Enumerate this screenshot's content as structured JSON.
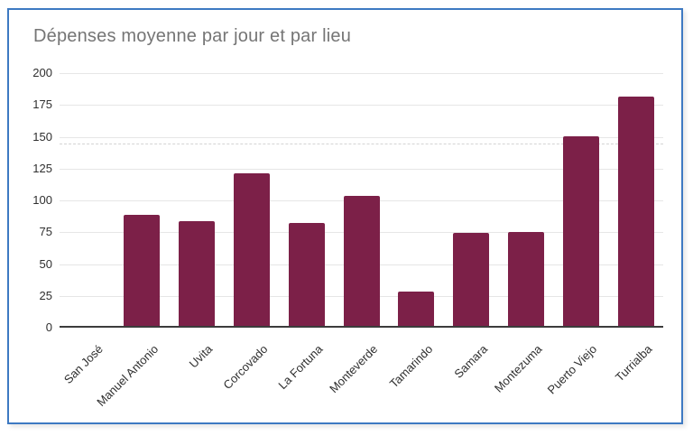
{
  "card": {
    "border_color": "#3d79c2",
    "background": "#ffffff"
  },
  "chart_data": {
    "type": "bar",
    "title": "Dépenses moyenne par jour et par lieu",
    "title_color": "#757575",
    "categories": [
      "San José",
      "Manuel Antonio",
      "Uvita",
      "Corcovado",
      "La Fortuna",
      "Monteverde",
      "Tamarindo",
      "Samara",
      "Montezuma",
      "Puerto Viejo",
      "Turrialba"
    ],
    "values": [
      0,
      87,
      82,
      120,
      81,
      102,
      27,
      73,
      74,
      149,
      180
    ],
    "xlabel": "",
    "ylabel": "",
    "ylim": [
      0,
      200
    ],
    "yticks": [
      0,
      25,
      50,
      75,
      100,
      125,
      150,
      175,
      200
    ],
    "reference_line": 145,
    "bar_color": "#7c2048",
    "gridline_color": "#e6e6e6",
    "baseline_color": "#3c3c3c",
    "tick_label_color": "#2f2f2f",
    "grid": true,
    "legend_position": "none",
    "x_label_rotation_deg": -45
  }
}
